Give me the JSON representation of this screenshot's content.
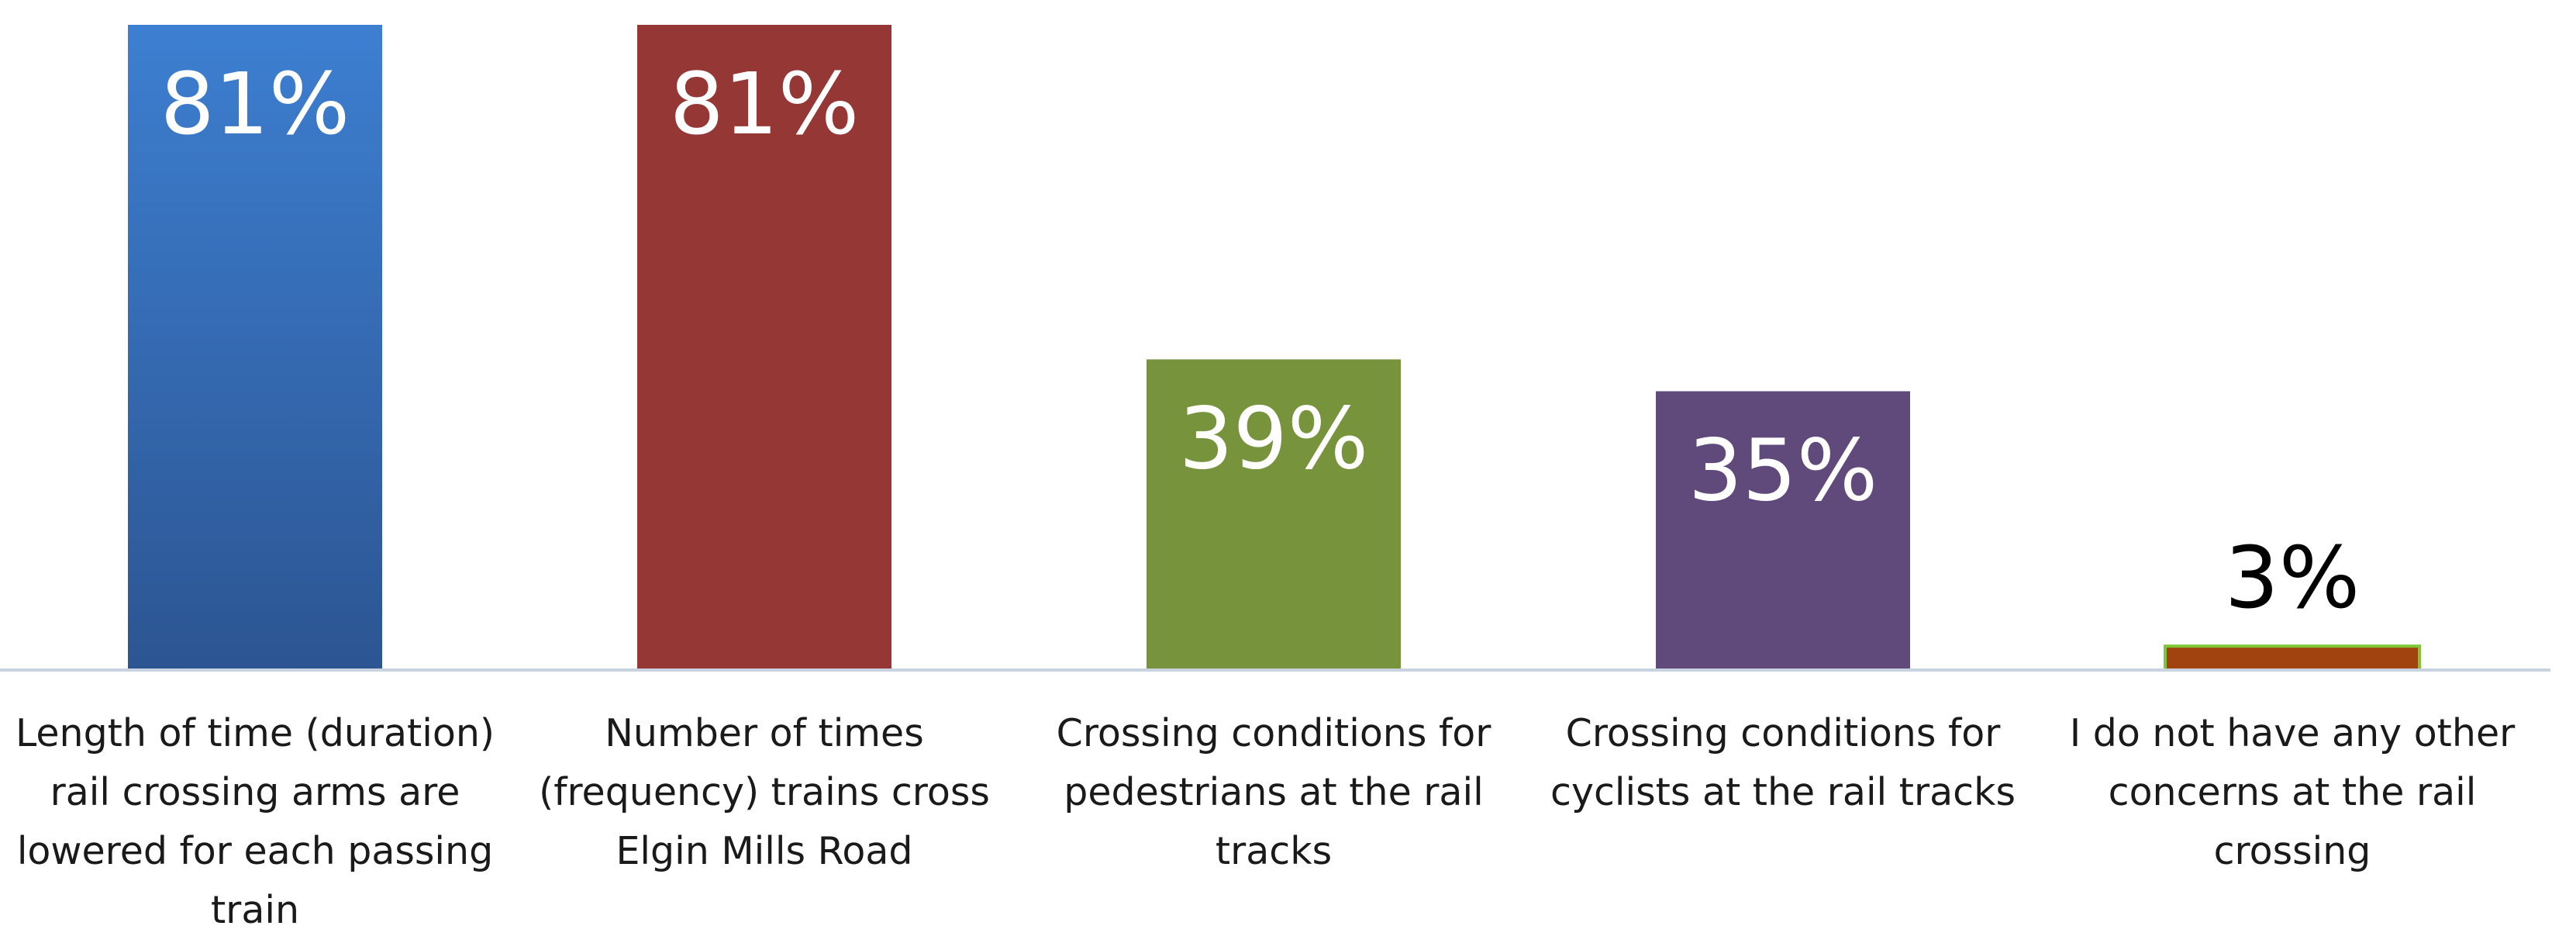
{
  "chart_data": {
    "type": "bar",
    "title": "",
    "xlabel": "",
    "ylabel": "",
    "ylim": [
      0,
      81
    ],
    "grid": false,
    "legend": "none",
    "categories": [
      [
        "Length of time (duration)",
        "rail crossing arms are",
        "lowered for each passing",
        "train"
      ],
      [
        "Number of times",
        "(frequency) trains cross",
        "Elgin Mills Road"
      ],
      [
        "Crossing conditions for",
        "pedestrians at the rail",
        "tracks"
      ],
      [
        "Crossing conditions for",
        "cyclists at the rail tracks"
      ],
      [
        "I do not have any other",
        "concerns at the rail",
        "crossing"
      ]
    ],
    "values": [
      81,
      81,
      39,
      35,
      3
    ],
    "value_labels": [
      "81%",
      "81%",
      "39%",
      "35%",
      "3%"
    ],
    "colors": [
      "#3a6eb8",
      "#953735",
      "#77933c",
      "#604a7b",
      "#a0430f"
    ],
    "gradients": [
      [
        "#3d7fd1",
        "#2c5592"
      ],
      null,
      null,
      null,
      null
    ],
    "bar_borders": [
      null,
      null,
      null,
      null,
      "#7ec637"
    ],
    "axis_color": "#c9d3e0",
    "label_color_inside": "#ffffff",
    "label_color_outside": "#000000"
  }
}
